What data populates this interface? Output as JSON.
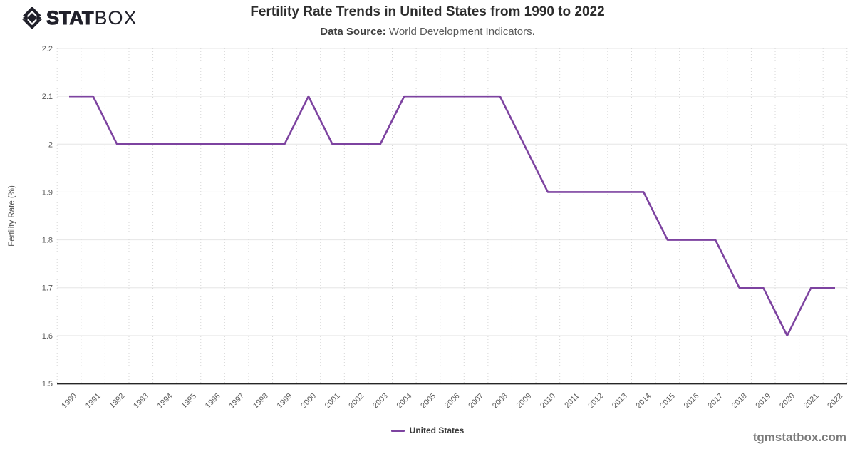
{
  "brand": {
    "stat": "STAT",
    "box": "BOX",
    "color": "#20202a"
  },
  "header": {
    "title": "Fertility Rate Trends in United States from 1990 to 2022",
    "source_label": "Data Source:",
    "source_text": " World Development Indicators."
  },
  "chart_data": {
    "type": "line",
    "title": "Fertility Rate Trends in United States from 1990 to 2022",
    "xlabel": "",
    "ylabel": "Fertility Rate (%)",
    "ylim": [
      1.5,
      2.2
    ],
    "yticks": [
      1.5,
      1.6,
      1.7,
      1.8,
      1.9,
      2.0,
      2.1,
      2.2
    ],
    "ytick_labels": [
      "1.5",
      "1.6",
      "1.7",
      "1.8",
      "1.9",
      "2",
      "2.1",
      "2.2"
    ],
    "grid": true,
    "legend_position": "bottom-center",
    "categories": [
      1990,
      1991,
      1992,
      1993,
      1994,
      1995,
      1996,
      1997,
      1998,
      1999,
      2000,
      2001,
      2002,
      2003,
      2004,
      2005,
      2006,
      2007,
      2008,
      2009,
      2010,
      2011,
      2012,
      2013,
      2014,
      2015,
      2016,
      2017,
      2018,
      2019,
      2020,
      2021,
      2022
    ],
    "series": [
      {
        "name": "United States",
        "color": "#7d43a0",
        "values": [
          2.1,
          2.1,
          2.0,
          2.0,
          2.0,
          2.0,
          2.0,
          2.0,
          2.0,
          2.0,
          2.1,
          2.0,
          2.0,
          2.0,
          2.1,
          2.1,
          2.1,
          2.1,
          2.1,
          2.0,
          1.9,
          1.9,
          1.9,
          1.9,
          1.9,
          1.8,
          1.8,
          1.8,
          1.7,
          1.7,
          1.6,
          1.7,
          1.7
        ]
      }
    ]
  },
  "legend": {
    "label": "United States",
    "color": "#7d43a0"
  },
  "footer": {
    "watermark": "tgmstatbox.com"
  }
}
